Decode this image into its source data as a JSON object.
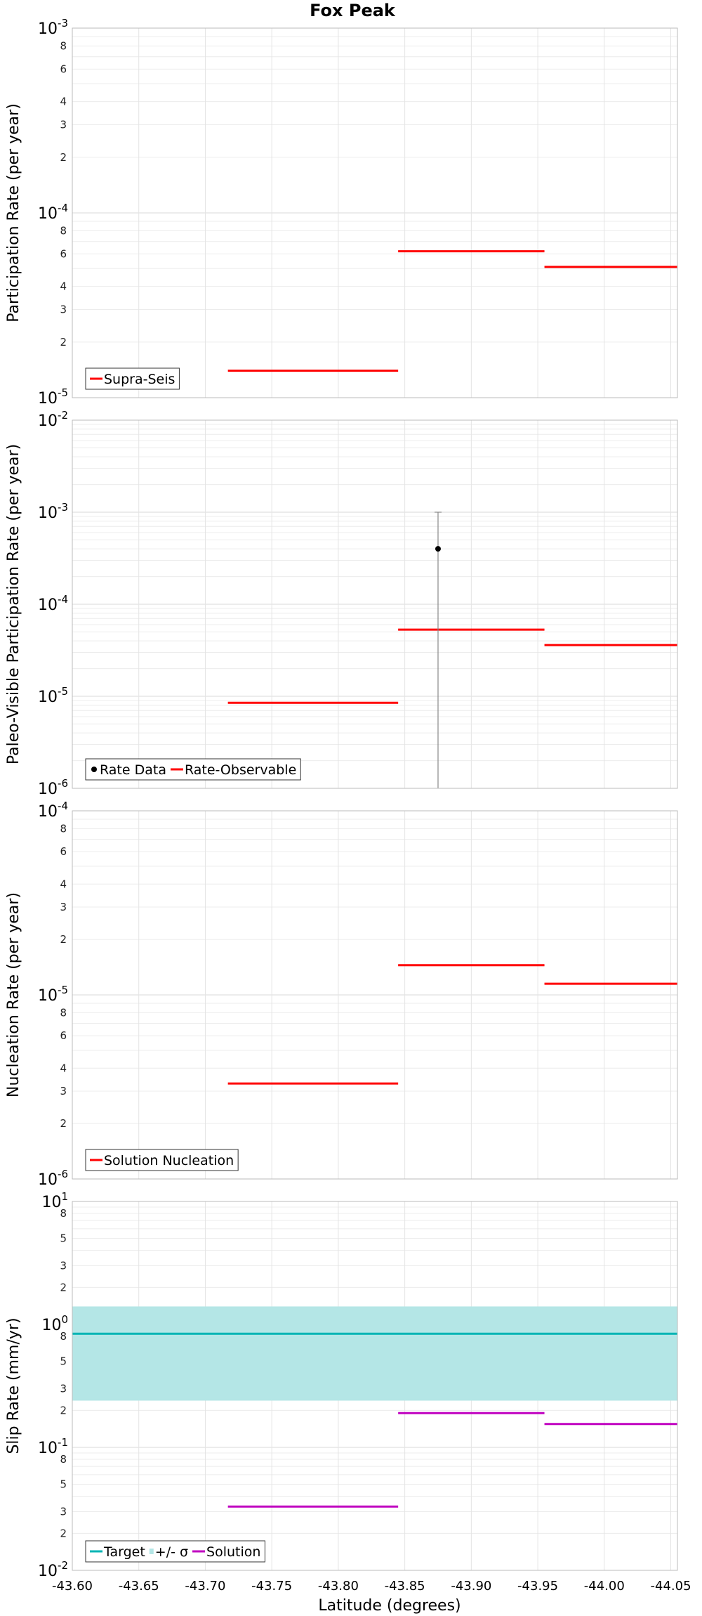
{
  "chart_data": {
    "type": "line",
    "title": "Fox Peak",
    "xlabel": "Latitude (degrees)",
    "xlim": [
      -43.6,
      -44.055
    ],
    "xticks": [
      "-43.60",
      "-43.65",
      "-43.70",
      "-43.75",
      "-43.80",
      "-43.85",
      "-43.90",
      "-43.95",
      "-44.00",
      "-44.05"
    ],
    "xtick_values": [
      -43.6,
      -43.65,
      -43.7,
      -43.75,
      -43.8,
      -43.85,
      -43.9,
      -43.95,
      -44.0,
      -44.05
    ],
    "panels": [
      {
        "ylabel": "Participation Rate (per year)",
        "yscale": "log",
        "ylim": [
          1e-05,
          0.001
        ],
        "major_ticks": [
          {
            "value": 1e-05,
            "base": "10",
            "exp": "-5"
          },
          {
            "value": 0.0001,
            "base": "10",
            "exp": "-4"
          },
          {
            "value": 0.001,
            "base": "10",
            "exp": "-3"
          }
        ],
        "minor_labels": [
          "2",
          "3",
          "4",
          "6",
          "8"
        ],
        "series": [
          {
            "name": "Supra-Seis",
            "color": "#ff0000",
            "kind": "step",
            "segments": [
              {
                "x0": -43.717,
                "x1": -43.845,
                "y": 1.4e-05
              },
              {
                "x0": -43.845,
                "x1": -43.955,
                "y": 6.2e-05
              },
              {
                "x0": -43.955,
                "x1": -44.065,
                "y": 5.1e-05
              }
            ]
          }
        ],
        "legend": {
          "position": "bottom-left",
          "entries": [
            {
              "label": "Supra-Seis",
              "color": "#ff0000",
              "marker": "line"
            }
          ]
        }
      },
      {
        "ylabel": "Paleo-Visible Participation Rate (per year)",
        "yscale": "log",
        "ylim": [
          1e-06,
          0.01
        ],
        "major_ticks": [
          {
            "value": 1e-06,
            "base": "10",
            "exp": "-6"
          },
          {
            "value": 1e-05,
            "base": "10",
            "exp": "-5"
          },
          {
            "value": 0.0001,
            "base": "10",
            "exp": "-4"
          },
          {
            "value": 0.001,
            "base": "10",
            "exp": "-3"
          },
          {
            "value": 0.01,
            "base": "10",
            "exp": "-2"
          }
        ],
        "minor_labels": [],
        "series": [
          {
            "name": "Rate-Observable",
            "color": "#ff0000",
            "kind": "step",
            "segments": [
              {
                "x0": -43.717,
                "x1": -43.845,
                "y": 8.5e-06
              },
              {
                "x0": -43.845,
                "x1": -43.955,
                "y": 5.3e-05
              },
              {
                "x0": -43.955,
                "x1": -44.065,
                "y": 3.6e-05
              }
            ]
          },
          {
            "name": "Rate Data",
            "color": "#000000",
            "kind": "point",
            "points": [
              {
                "x": -43.875,
                "y": 0.0004,
                "ylow": 1e-06,
                "yhigh": 0.001
              }
            ]
          }
        ],
        "legend": {
          "position": "bottom-left",
          "entries": [
            {
              "label": "Rate Data",
              "color": "#000000",
              "marker": "dot"
            },
            {
              "label": "Rate-Observable",
              "color": "#ff0000",
              "marker": "line"
            }
          ]
        }
      },
      {
        "ylabel": "Nucleation Rate (per year)",
        "yscale": "log",
        "ylim": [
          1e-06,
          0.0001
        ],
        "major_ticks": [
          {
            "value": 1e-06,
            "base": "10",
            "exp": "-6"
          },
          {
            "value": 1e-05,
            "base": "10",
            "exp": "-5"
          },
          {
            "value": 0.0001,
            "base": "10",
            "exp": "-4"
          }
        ],
        "minor_labels": [
          "2",
          "3",
          "4",
          "6",
          "8"
        ],
        "series": [
          {
            "name": "Solution Nucleation",
            "color": "#ff0000",
            "kind": "step",
            "segments": [
              {
                "x0": -43.717,
                "x1": -43.845,
                "y": 3.3e-06
              },
              {
                "x0": -43.845,
                "x1": -43.955,
                "y": 1.45e-05
              },
              {
                "x0": -43.955,
                "x1": -44.065,
                "y": 1.15e-05
              }
            ]
          }
        ],
        "legend": {
          "position": "bottom-left",
          "entries": [
            {
              "label": "Solution Nucleation",
              "color": "#ff0000",
              "marker": "line"
            }
          ]
        }
      },
      {
        "ylabel": "Slip Rate (mm/yr)",
        "yscale": "log",
        "ylim": [
          0.01,
          10
        ],
        "major_ticks": [
          {
            "value": 0.01,
            "base": "10",
            "exp": "-2"
          },
          {
            "value": 0.1,
            "base": "10",
            "exp": "-1"
          },
          {
            "value": 1,
            "base": "10",
            "exp": "0"
          },
          {
            "value": 10,
            "base": "10",
            "exp": "1"
          }
        ],
        "minor_labels": [
          "2",
          "3",
          "5",
          "8"
        ],
        "band": {
          "name": "+/- σ",
          "color": "#b4e6e6",
          "x0": -43.6,
          "x1": -44.065,
          "ylow": 0.24,
          "yhigh": 1.4
        },
        "series": [
          {
            "name": "Target",
            "color": "#00b4b4",
            "kind": "step",
            "segments": [
              {
                "x0": -43.6,
                "x1": -44.065,
                "y": 0.84
              }
            ]
          },
          {
            "name": "Solution",
            "color": "#c000c0",
            "kind": "step",
            "segments": [
              {
                "x0": -43.717,
                "x1": -43.845,
                "y": 0.033
              },
              {
                "x0": -43.845,
                "x1": -43.955,
                "y": 0.19
              },
              {
                "x0": -43.955,
                "x1": -44.065,
                "y": 0.155
              }
            ]
          }
        ],
        "legend": {
          "position": "bottom-left",
          "entries": [
            {
              "label": "Target",
              "color": "#00b4b4",
              "marker": "line"
            },
            {
              "label": "+/- σ",
              "color": "#b4e6e6",
              "marker": "band"
            },
            {
              "label": "Solution",
              "color": "#c000c0",
              "marker": "line"
            }
          ]
        }
      }
    ]
  }
}
